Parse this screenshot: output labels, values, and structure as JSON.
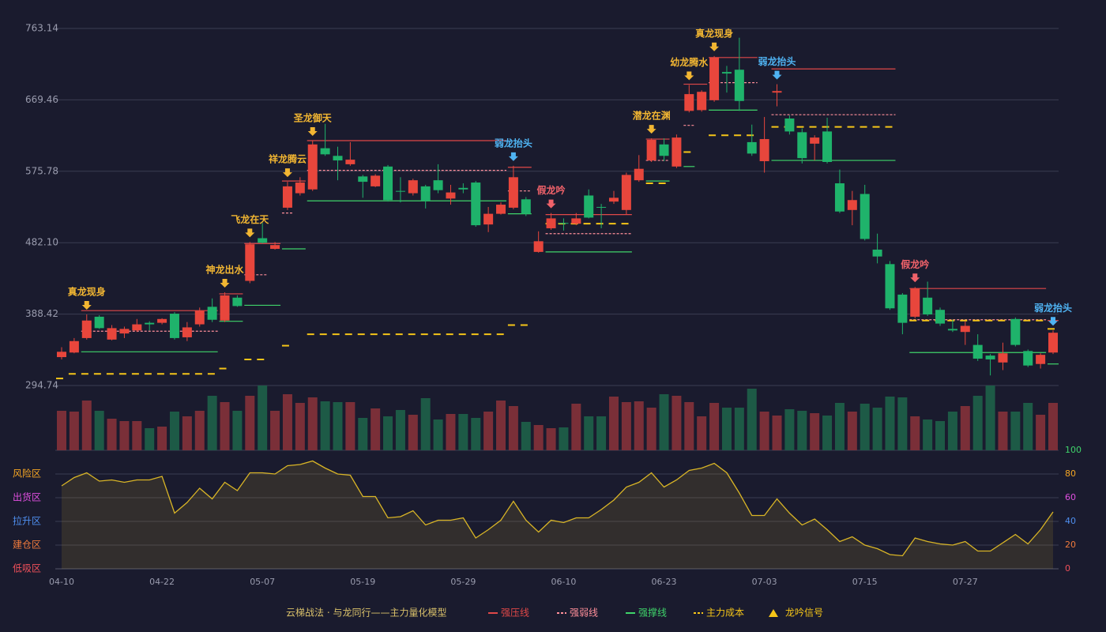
{
  "chart_data": {
    "type": "candlestick",
    "legend_title": "云梯战法 · 与龙同行——主力量化模型",
    "signal_legend": "龙吟信号",
    "categories": [
      "04-10",
      null,
      null,
      null,
      null,
      null,
      null,
      null,
      "04-22",
      null,
      null,
      null,
      null,
      null,
      null,
      null,
      "05-07",
      null,
      null,
      null,
      null,
      null,
      null,
      null,
      "05-19",
      null,
      null,
      null,
      null,
      null,
      null,
      null,
      "05-29",
      null,
      null,
      null,
      null,
      null,
      null,
      null,
      "06-10",
      null,
      null,
      null,
      null,
      null,
      null,
      null,
      "06-23",
      null,
      null,
      null,
      null,
      null,
      null,
      null,
      "07-03",
      null,
      null,
      null,
      null,
      null,
      null,
      null,
      "07-15",
      null,
      null,
      null,
      null,
      null,
      null,
      null,
      "07-27",
      null,
      null,
      null,
      null,
      null,
      null,
      null
    ],
    "open": [
      332,
      338,
      357,
      385,
      355,
      363,
      367,
      377,
      377,
      389,
      358,
      375,
      398,
      380,
      410,
      432,
      488,
      474,
      528,
      547,
      552,
      606,
      596,
      585,
      569,
      556,
      582,
      550,
      547,
      556,
      564,
      540,
      554,
      561,
      506,
      520,
      528,
      539,
      470,
      501,
      508,
      507,
      544,
      529,
      536,
      525,
      564,
      590,
      611,
      582,
      655,
      656,
      669,
      706,
      709,
      614,
      589,
      679,
      645,
      627,
      612,
      628,
      560,
      525,
      546,
      473,
      454,
      414,
      385,
      410,
      394,
      369,
      365,
      348,
      334,
      325,
      382,
      340,
      323,
      338
    ],
    "high": [
      345,
      357,
      388,
      387,
      374,
      372,
      382,
      379,
      383,
      391,
      378,
      397,
      409,
      417,
      413,
      483,
      508,
      483,
      562,
      568,
      616,
      638,
      608,
      614,
      571,
      572,
      584,
      568,
      566,
      558,
      585,
      558,
      560,
      563,
      529,
      535,
      583,
      542,
      497,
      521,
      514,
      521,
      552,
      533,
      550,
      574,
      597,
      619,
      619,
      624,
      689,
      682,
      727,
      714,
      751,
      637,
      647,
      690,
      649,
      632,
      623,
      646,
      578,
      550,
      558,
      494,
      458,
      416,
      424,
      431,
      397,
      381,
      379,
      362,
      336,
      351,
      384,
      342,
      337,
      367
    ],
    "low": [
      329,
      337,
      355,
      369,
      354,
      357,
      365,
      367,
      375,
      355,
      353,
      372,
      378,
      378,
      398,
      429,
      481,
      473,
      525,
      544,
      550,
      596,
      564,
      583,
      541,
      555,
      536,
      535,
      544,
      527,
      547,
      532,
      547,
      503,
      496,
      519,
      526,
      517,
      469,
      499,
      498,
      505,
      514,
      501,
      533,
      519,
      562,
      588,
      589,
      580,
      653,
      654,
      667,
      679,
      655,
      596,
      574,
      661,
      624,
      586,
      590,
      586,
      521,
      505,
      485,
      455,
      394,
      362,
      383,
      386,
      373,
      365,
      348,
      327,
      308,
      315,
      346,
      319,
      317,
      336
    ],
    "close": [
      339,
      353,
      380,
      370,
      370,
      369,
      375,
      375,
      382,
      357,
      371,
      393,
      381,
      413,
      399,
      480,
      482,
      479,
      556,
      561,
      611,
      598,
      590,
      591,
      562,
      570,
      538,
      549,
      564,
      537,
      551,
      548,
      552,
      505,
      520,
      532,
      568,
      520,
      484,
      514,
      507,
      514,
      515,
      528,
      541,
      571,
      579,
      617,
      596,
      620,
      677,
      680,
      725,
      704,
      668,
      599,
      618,
      681,
      628,
      593,
      620,
      588,
      523,
      538,
      487,
      464,
      396,
      377,
      422,
      388,
      376,
      367,
      373,
      330,
      329,
      337,
      348,
      321,
      335,
      364
    ],
    "volume": [
      50,
      49,
      63,
      50,
      40,
      37,
      37,
      28,
      30,
      49,
      43,
      50,
      69,
      61,
      50,
      69,
      82,
      50,
      71,
      60,
      67,
      62,
      61,
      61,
      41,
      53,
      43,
      51,
      45,
      66,
      39,
      46,
      46,
      41,
      49,
      63,
      56,
      36,
      32,
      28,
      29,
      59,
      43,
      43,
      68,
      61,
      62,
      54,
      71,
      69,
      61,
      43,
      60,
      54,
      54,
      78,
      49,
      44,
      52,
      50,
      47,
      44,
      60,
      49,
      59,
      54,
      68,
      67,
      43,
      39,
      37,
      49,
      56,
      69,
      82,
      49,
      49,
      60,
      45,
      60
    ],
    "up_color": "#e8463c",
    "down_color": "#1fb36b",
    "volume_up_color": "#7a2f38",
    "volume_down_color": "#1d5a46",
    "ylim": [
      294.74,
      763.14
    ],
    "yticks": [
      294.74,
      388.42,
      {
        "value": 482.1,
        "label": "482.10"
      },
      575.78,
      669.46,
      763.14
    ],
    "grid": true,
    "signals": [
      {
        "index": 2,
        "label": "真龙现身",
        "color": "#f2b632"
      },
      {
        "index": 13,
        "label": "神龙出水",
        "color": "#f2b632"
      },
      {
        "index": 15,
        "label": "飞龙在天",
        "color": "#f2b632"
      },
      {
        "index": 18,
        "label": "祥龙腾云",
        "color": "#f2b632"
      },
      {
        "index": 20,
        "label": "圣龙御天",
        "color": "#f2b632"
      },
      {
        "index": 36,
        "label": "弱龙抬头",
        "color": "#4fb3f2"
      },
      {
        "index": 39,
        "label": "假龙吟",
        "color": "#f0626a"
      },
      {
        "index": 47,
        "label": "潜龙在渊",
        "color": "#f2b632"
      },
      {
        "index": 50,
        "label": "幼龙腾水",
        "color": "#f2b632"
      },
      {
        "index": 52,
        "label": "真龙现身",
        "color": "#f2b632"
      },
      {
        "index": 57,
        "label": "弱龙抬头",
        "color": "#4fb3f2"
      },
      {
        "index": 68,
        "label": "假龙吟",
        "color": "#f0626a"
      },
      {
        "index": 79,
        "label": "弱龙抬头",
        "color": "#4fb3f2"
      }
    ],
    "levels": [
      {
        "name": "强压线",
        "color": "#e04848",
        "style": "solid",
        "segments": [
          {
            "from": 2,
            "to": 12,
            "value": 393
          },
          {
            "from": 13,
            "to": 14,
            "value": 415
          },
          {
            "from": 15,
            "to": 17,
            "value": 481
          },
          {
            "from": 18,
            "to": 19,
            "value": 563
          },
          {
            "from": 20,
            "to": 35,
            "value": 616
          },
          {
            "from": 36,
            "to": 37,
            "value": 581
          },
          {
            "from": 39,
            "to": 45,
            "value": 519
          },
          {
            "from": 47,
            "to": 48,
            "value": 618
          },
          {
            "from": 50,
            "to": 51,
            "value": 690
          },
          {
            "from": 52,
            "to": 55,
            "value": 725
          },
          {
            "from": 57,
            "to": 66,
            "value": 710
          },
          {
            "from": 68,
            "to": 78,
            "value": 422
          },
          {
            "from": 79,
            "to": 79,
            "value": 380
          }
        ]
      },
      {
        "name": "强弱线",
        "color": "#ff8f9a",
        "style": "dot",
        "segments": [
          {
            "from": 2,
            "to": 12,
            "value": 366
          },
          {
            "from": 15,
            "to": 16,
            "value": 440
          },
          {
            "from": 18,
            "to": 18,
            "value": 521
          },
          {
            "from": 20,
            "to": 35,
            "value": 577
          },
          {
            "from": 36,
            "to": 37,
            "value": 550
          },
          {
            "from": 39,
            "to": 45,
            "value": 494
          },
          {
            "from": 47,
            "to": 48,
            "value": 590
          },
          {
            "from": 50,
            "to": 50,
            "value": 636
          },
          {
            "from": 52,
            "to": 55,
            "value": 692
          },
          {
            "from": 57,
            "to": 66,
            "value": 650
          },
          {
            "from": 68,
            "to": 78,
            "value": 381
          }
        ]
      },
      {
        "name": "强撑线",
        "color": "#3fd46a",
        "style": "solid",
        "segments": [
          {
            "from": 2,
            "to": 12,
            "value": 339
          },
          {
            "from": 13,
            "to": 14,
            "value": 379
          },
          {
            "from": 15,
            "to": 17,
            "value": 400
          },
          {
            "from": 18,
            "to": 19,
            "value": 474
          },
          {
            "from": 20,
            "to": 35,
            "value": 537
          },
          {
            "from": 36,
            "to": 37,
            "value": 520
          },
          {
            "from": 39,
            "to": 45,
            "value": 470
          },
          {
            "from": 47,
            "to": 48,
            "value": 563
          },
          {
            "from": 50,
            "to": 50,
            "value": 582
          },
          {
            "from": 52,
            "to": 55,
            "value": 656
          },
          {
            "from": 57,
            "to": 66,
            "value": 590
          },
          {
            "from": 68,
            "to": 78,
            "value": 338
          },
          {
            "from": 79,
            "to": 79,
            "value": 323
          }
        ]
      },
      {
        "name": "主力成本",
        "color": "#f5c518",
        "style": "dash",
        "segments": [
          {
            "from": 0,
            "to": 0,
            "value": 304
          },
          {
            "from": 1,
            "to": 12,
            "value": 310
          },
          {
            "from": 13,
            "to": 13,
            "value": 317
          },
          {
            "from": 15,
            "to": 16,
            "value": 329
          },
          {
            "from": 18,
            "to": 18,
            "value": 347
          },
          {
            "from": 20,
            "to": 35,
            "value": 362
          },
          {
            "from": 36,
            "to": 37,
            "value": 374
          },
          {
            "from": 39,
            "to": 45,
            "value": 507
          },
          {
            "from": 47,
            "to": 48,
            "value": 560
          },
          {
            "from": 50,
            "to": 50,
            "value": 601
          },
          {
            "from": 52,
            "to": 55,
            "value": 623
          },
          {
            "from": 57,
            "to": 66,
            "value": 634
          },
          {
            "from": 68,
            "to": 78,
            "value": 380
          },
          {
            "from": 79,
            "to": 79,
            "value": 369
          }
        ]
      }
    ],
    "indicator": {
      "color": "#d9b526",
      "values": [
        70,
        77,
        81,
        74,
        75,
        73,
        75,
        75,
        78,
        47,
        56,
        68,
        59,
        73,
        66,
        81,
        81,
        80,
        87,
        88,
        91,
        85,
        80,
        79,
        61,
        61,
        43,
        44,
        49,
        37,
        41,
        41,
        43,
        26,
        33,
        41,
        57,
        41,
        31,
        41,
        39,
        43,
        43,
        50,
        58,
        69,
        73,
        81,
        69,
        75,
        83,
        85,
        89,
        81,
        64,
        45,
        45,
        59,
        47,
        37,
        42,
        33,
        23,
        27,
        20,
        17,
        12,
        11,
        26,
        23,
        21,
        20,
        23,
        15,
        15,
        22,
        29,
        21,
        33,
        48
      ],
      "ylim": [
        0,
        100
      ],
      "yticks": [
        0,
        20,
        40,
        60,
        80,
        100
      ],
      "ytick_colors": [
        "#f0505a",
        "#f07a3c",
        "#4f8ff0",
        "#e04fe0",
        "#f5a623",
        "#3fd46a"
      ],
      "zones": [
        {
          "label": "风险区",
          "value": 80,
          "color": "#f5a623"
        },
        {
          "label": "出货区",
          "value": 60,
          "color": "#e04fe0"
        },
        {
          "label": "拉升区",
          "value": 40,
          "color": "#4f8ff0"
        },
        {
          "label": "建仓区",
          "value": 20,
          "color": "#f07a3c"
        },
        {
          "label": "低吸区",
          "value": 0,
          "color": "#f0505a"
        }
      ]
    }
  }
}
